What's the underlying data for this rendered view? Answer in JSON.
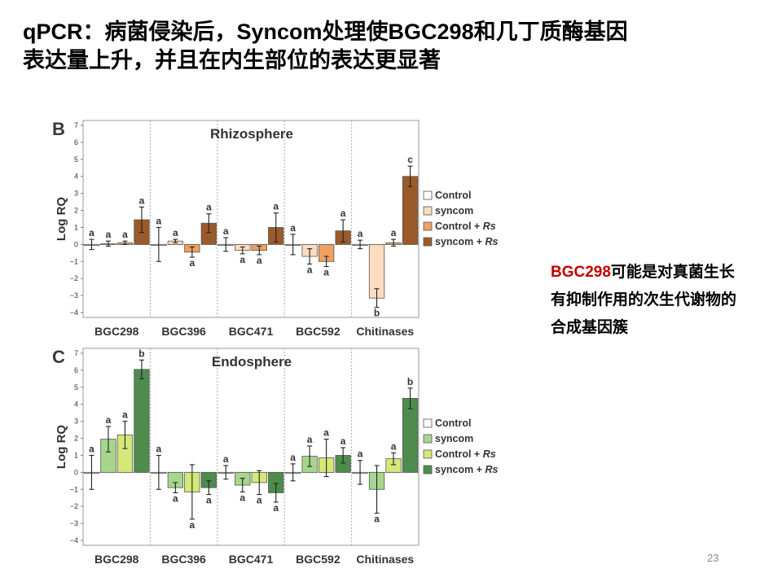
{
  "slide": {
    "title_line1": "qPCR：病菌侵染后，Syncom处理使BGC298和几丁质酶基因",
    "title_line2": "表达量上升，并且在内生部位的表达更显著",
    "note_highlight": "BGC298",
    "note_text": "可能是对真菌生长有抑制作用的次生代谢物的合成基因簇",
    "page_number": "23"
  },
  "chart_data": [
    {
      "type": "bar",
      "panel_letter": "B",
      "title": "Rhizosphere",
      "ylabel": "Log RQ",
      "ylim": [
        -4,
        7
      ],
      "yticks": [
        -4,
        -3,
        -2,
        -1,
        0,
        1,
        2,
        3,
        4,
        5,
        6,
        7
      ],
      "categories": [
        "BGC298",
        "BGC396",
        "BGC471",
        "BGC592",
        "Chitinases"
      ],
      "legend_position": "right",
      "series": [
        {
          "name": "Control",
          "color": "#ffffff",
          "values": [
            0,
            0,
            0,
            0,
            0
          ],
          "errors": [
            0.3,
            1.0,
            0.4,
            0.6,
            0.25
          ],
          "letters": [
            "a",
            "a",
            "a",
            "a",
            "a"
          ]
        },
        {
          "name": "syncom",
          "color": "#fbdcbf",
          "values": [
            0.05,
            0.2,
            -0.35,
            -0.7,
            -3.15
          ],
          "errors": [
            0.15,
            0.1,
            0.2,
            0.45,
            0.55
          ],
          "letters": [
            "a",
            "a",
            "a",
            "a",
            "b"
          ]
        },
        {
          "name": "Control + Rs",
          "color": "#f0a060",
          "values": [
            0.1,
            -0.45,
            -0.35,
            -1.0,
            0.1
          ],
          "errors": [
            0.1,
            0.3,
            0.25,
            0.3,
            0.2
          ],
          "letters": [
            "a",
            "a",
            "a",
            "a",
            "a"
          ]
        },
        {
          "name": "syncom + Rs",
          "color": "#9b5a2a",
          "values": [
            1.45,
            1.25,
            1.0,
            0.8,
            4.0
          ],
          "errors": [
            0.75,
            0.55,
            0.85,
            0.65,
            0.6
          ],
          "letters": [
            "a",
            "a",
            "a",
            "a",
            "c"
          ]
        }
      ]
    },
    {
      "type": "bar",
      "panel_letter": "C",
      "title": "Endosphere",
      "ylabel": "Log RQ",
      "ylim": [
        -4,
        7
      ],
      "yticks": [
        -4,
        -3,
        -2,
        -1,
        0,
        1,
        2,
        3,
        4,
        5,
        6,
        7
      ],
      "categories": [
        "BGC298",
        "BGC396",
        "BGC471",
        "BGC592",
        "Chitinases"
      ],
      "legend_position": "right",
      "series": [
        {
          "name": "Control",
          "color": "#ffffff",
          "values": [
            0,
            0,
            0,
            0,
            0
          ],
          "errors": [
            1.0,
            1.0,
            0.4,
            0.5,
            0.7
          ],
          "letters": [
            "a",
            "a",
            "a",
            "a",
            "a"
          ]
        },
        {
          "name": "syncom",
          "color": "#a6d68c",
          "values": [
            1.95,
            -0.9,
            -0.75,
            0.95,
            -1.0
          ],
          "errors": [
            0.75,
            0.3,
            0.4,
            0.6,
            1.4
          ],
          "letters": [
            "a",
            "a",
            "a",
            "a",
            "a"
          ]
        },
        {
          "name": "Control + Rs",
          "color": "#d4e878",
          "values": [
            2.2,
            -1.15,
            -0.6,
            0.85,
            0.8
          ],
          "errors": [
            0.8,
            1.6,
            0.7,
            1.1,
            0.35
          ],
          "letters": [
            "a",
            "a",
            "a",
            "a",
            "a"
          ]
        },
        {
          "name": "syncom + Rs",
          "color": "#4e8c4e",
          "values": [
            6.05,
            -0.9,
            -1.2,
            1.0,
            4.35
          ],
          "errors": [
            0.55,
            0.4,
            0.55,
            0.45,
            0.6
          ],
          "letters": [
            "b",
            "a",
            "a",
            "a",
            "b"
          ]
        }
      ]
    }
  ]
}
